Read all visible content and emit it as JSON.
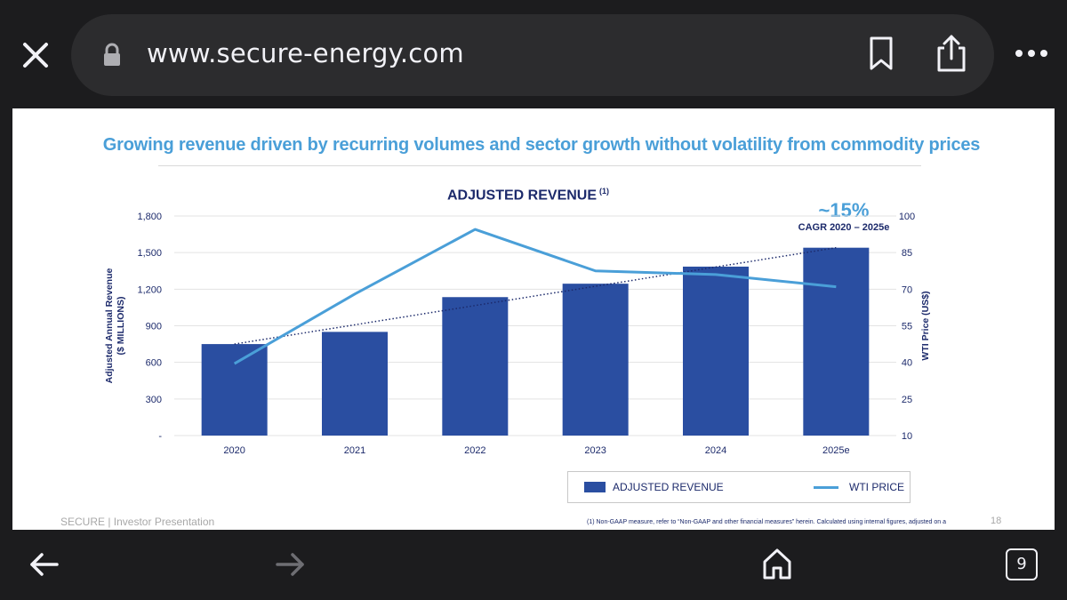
{
  "browser": {
    "url": "www.secure-energy.com",
    "tab_count": "9",
    "icons": [
      "close-icon",
      "lock-icon",
      "bookmark-icon",
      "share-icon",
      "more-icon",
      "back-arrow-icon",
      "forward-arrow-icon",
      "home-icon",
      "tabs-icon"
    ]
  },
  "slide": {
    "subtitle": "Growing revenue driven by recurring volumes and sector growth without volatility from commodity prices",
    "chart_title": "ADJUSTED REVENUE",
    "chart_title_sup": "(1)",
    "cagr_value": "~15%",
    "cagr_label": "CAGR 2020 – 2025e",
    "footer_left": "SECURE  |  Investor Presentation",
    "footnote": "(1) Non-GAAP measure, refer to “Non-GAAP and other financial measures” herein. Calculated using internal figures, adjusted on a",
    "page_number": "18"
  },
  "chart_data": {
    "type": "bar",
    "title": "ADJUSTED REVENUE (1)",
    "categories": [
      "2020",
      "2021",
      "2022",
      "2023",
      "2024",
      "2025e"
    ],
    "series": [
      {
        "name": "ADJUSTED REVENUE",
        "type": "bar",
        "axis": "left",
        "values": [
          750,
          850,
          1135,
          1245,
          1385,
          1540
        ]
      },
      {
        "name": "WTI PRICE",
        "type": "line",
        "axis": "right",
        "values": [
          39.5,
          68,
          94.5,
          77.5,
          76,
          71
        ]
      }
    ],
    "trendline": {
      "style": "dotted",
      "start": 750,
      "end": 1540
    },
    "ylabel": "Adjusted Annual Revenue ($ MILLIONS)",
    "ylabel_lines": [
      "Adjusted Annual Revenue",
      "($ MILLIONS)"
    ],
    "y2label": "WTI Price (US$)",
    "ylim": [
      0,
      1800
    ],
    "y2lim": [
      10,
      100
    ],
    "yticks": [
      "-",
      "300",
      "600",
      "900",
      "1,200",
      "1,500",
      "1,800"
    ],
    "y2ticks": [
      "10",
      "25",
      "40",
      "55",
      "70",
      "85",
      "100"
    ],
    "grid": true,
    "legend": "bottom-right",
    "colors": {
      "bars": "#2a4ea1",
      "line": "#4a9fd8",
      "trend": "#1c2a6b"
    }
  }
}
